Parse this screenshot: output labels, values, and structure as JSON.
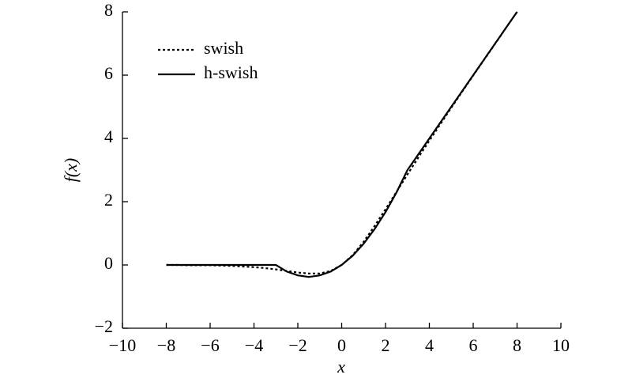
{
  "chart_data": {
    "type": "line",
    "xlabel": "x",
    "ylabel": "f(x)",
    "x": [
      -8,
      -7.5,
      -7,
      -6.5,
      -6,
      -5.5,
      -5,
      -4.5,
      -4,
      -3.5,
      -3,
      -2.5,
      -2,
      -1.5,
      -1,
      -0.5,
      0,
      0.5,
      1,
      1.5,
      2,
      2.5,
      3,
      3.5,
      4,
      4.5,
      5,
      5.5,
      6,
      6.5,
      7,
      7.5,
      8
    ],
    "series": [
      {
        "name": "swish",
        "color": "#000000",
        "style": "dotted",
        "values": [
          0,
          0,
          -0.01,
          -0.01,
          -0.01,
          -0.02,
          -0.03,
          -0.05,
          -0.07,
          -0.1,
          -0.14,
          -0.19,
          -0.24,
          -0.27,
          -0.27,
          -0.19,
          0,
          0.31,
          0.73,
          1.23,
          1.76,
          2.31,
          2.86,
          3.4,
          3.93,
          4.45,
          4.97,
          5.48,
          5.99,
          6.49,
          6.99,
          7.5,
          8
        ]
      },
      {
        "name": "h-swish",
        "color": "#000000",
        "style": "solid",
        "values": [
          0,
          0,
          0,
          0,
          0,
          0,
          0,
          0,
          0,
          0,
          0,
          -0.21,
          -0.33,
          -0.38,
          -0.33,
          -0.21,
          0,
          0.29,
          0.67,
          1.13,
          1.67,
          2.29,
          3,
          3.5,
          4,
          4.5,
          5,
          5.5,
          6,
          6.5,
          7,
          7.5,
          8
        ]
      }
    ],
    "xlim": [
      -10,
      10
    ],
    "xticks": [
      {
        "value": -10,
        "label": "−10"
      },
      {
        "value": -8,
        "label": "−8"
      },
      {
        "value": -6,
        "label": "−6"
      },
      {
        "value": -4,
        "label": "−4"
      },
      {
        "value": -2,
        "label": "−2"
      },
      0,
      2,
      4,
      6,
      8,
      10
    ],
    "ylim": [
      -2,
      8
    ],
    "yticks": [
      {
        "value": -2,
        "label": "−2"
      },
      0,
      2,
      4,
      6,
      8
    ],
    "legend": "upper left",
    "grid": false
  }
}
